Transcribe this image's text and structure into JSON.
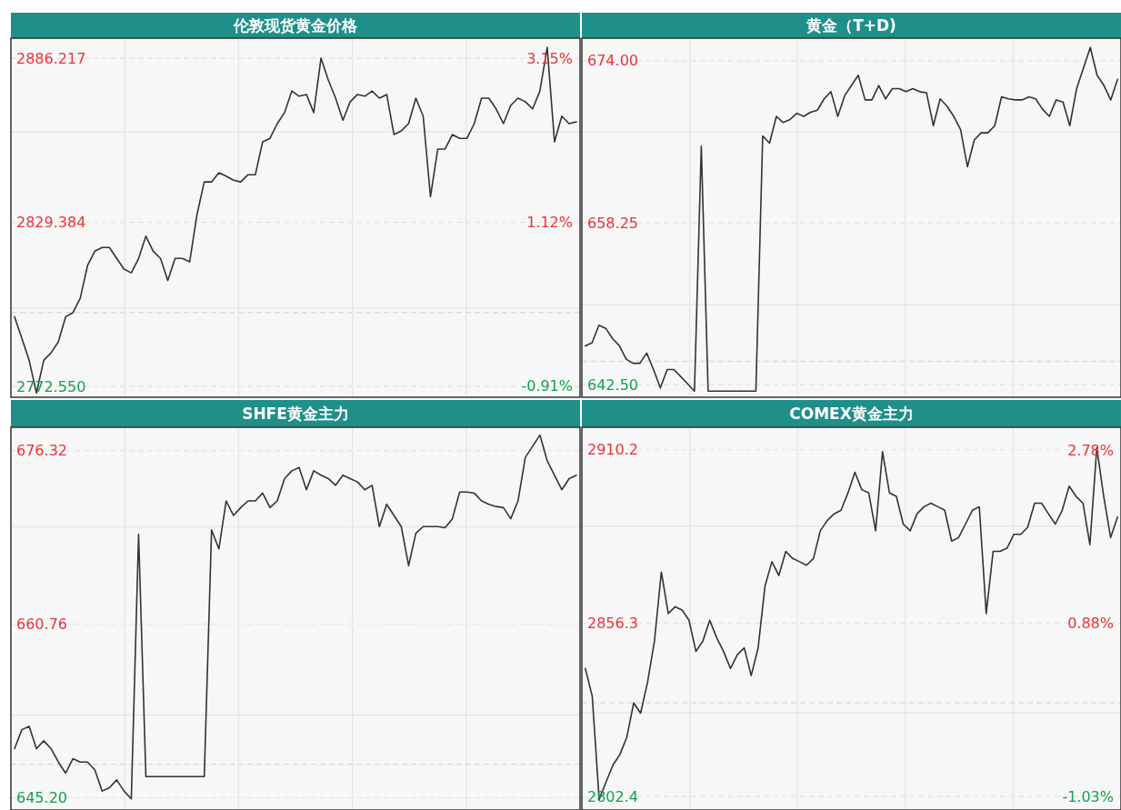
{
  "chart_data": [
    {
      "type": "line",
      "title": "伦敦现货黄金价格",
      "grid": true,
      "categories": [
        null,
        null,
        null,
        null,
        null,
        null,
        null,
        null,
        null,
        null,
        null,
        null,
        null,
        null,
        null,
        null,
        null,
        null,
        null,
        null,
        null,
        null,
        null,
        null,
        null,
        null,
        null,
        null,
        null,
        null,
        null,
        null,
        null,
        null,
        null,
        null,
        null,
        null,
        null,
        null,
        null,
        null,
        null,
        null,
        null,
        null,
        null,
        null,
        null,
        null,
        null,
        null,
        null,
        null,
        null,
        null,
        null,
        null,
        null,
        null,
        null,
        null,
        null,
        null,
        null,
        null,
        null,
        null,
        null,
        null,
        null,
        null,
        null,
        null,
        null,
        null,
        null,
        null
      ],
      "series": [
        {
          "color": "#333333",
          "values": [
            2796.7,
            2789.2,
            2781.6,
            2770.3,
            2781.6,
            2784.2,
            2788.0,
            2796.7,
            2798.1,
            2803.1,
            2814.4,
            2819.4,
            2820.7,
            2820.7,
            2816.9,
            2813.2,
            2811.9,
            2816.9,
            2824.6,
            2819.4,
            2816.9,
            2809.3,
            2816.9,
            2816.9,
            2815.7,
            2832.1,
            2843.4,
            2843.4,
            2846.6,
            2845.4,
            2844.0,
            2843.4,
            2845.9,
            2845.9,
            2857.3,
            2858.5,
            2863.6,
            2867.4,
            2874.9,
            2873.1,
            2873.7,
            2867.4,
            2886.3,
            2878.7,
            2872.4,
            2864.8,
            2871.2,
            2873.7,
            2873.1,
            2874.9,
            2872.4,
            2873.7,
            2859.8,
            2861.1,
            2863.6,
            2872.4,
            2866.2,
            2838.3,
            2854.8,
            2854.8,
            2859.8,
            2858.5,
            2858.5,
            2863.6,
            2872.4,
            2872.4,
            2868.7,
            2863.6,
            2869.9,
            2872.4,
            2871.2,
            2868.7,
            2874.9,
            2890.0,
            2857.3,
            2866.2,
            2863.6,
            2864.2
          ]
        }
      ],
      "ylim": [
        2768.8,
        2893.2
      ],
      "yticks": [
        {
          "value": 2772.55,
          "label": "2772.550"
        },
        {
          "value": 2799.6,
          "label": null
        },
        {
          "value": 2829.384,
          "label": "2829.384"
        },
        {
          "value": 2860.8,
          "label": null
        },
        {
          "value": 2886.217,
          "label": "2886.217"
        }
      ],
      "y2lim": [
        -1.05,
        3.4
      ],
      "y2ticks": [
        {
          "value": -0.91,
          "label": "-0.91%"
        },
        {
          "value": 1.12,
          "label": "1.12%"
        },
        {
          "value": 3.15,
          "label": "3.15%"
        }
      ],
      "ref_lines": [
        {
          "axis": "y2",
          "value": 0,
          "color": "#dddddd",
          "line_style": "dashed"
        }
      ]
    },
    {
      "type": "line",
      "title": "黄金（T+D)",
      "grid": true,
      "categories": [
        null,
        null,
        null,
        null,
        null,
        null,
        null,
        null,
        null,
        null,
        null,
        null,
        null,
        null,
        null,
        null,
        null,
        null,
        null,
        null,
        null,
        null,
        null,
        null,
        null,
        null,
        null,
        null,
        null,
        null,
        null,
        null,
        null,
        null,
        null,
        null,
        null,
        null,
        null,
        null,
        null,
        null,
        null,
        null,
        null,
        null,
        null,
        null,
        null,
        null,
        null,
        null,
        null,
        null,
        null,
        null,
        null,
        null,
        null,
        null,
        null,
        null,
        null,
        null,
        null,
        null,
        null,
        null,
        null,
        null,
        null,
        null,
        null,
        null,
        null,
        null,
        null,
        null,
        null
      ],
      "series": [
        {
          "color": "#333333",
          "values": [
            646.3,
            646.6,
            648.3,
            648.0,
            647.0,
            646.3,
            645.0,
            644.6,
            644.6,
            645.6,
            644.0,
            642.2,
            644.0,
            644.0,
            643.3,
            642.6,
            641.9,
            665.7,
            641.9,
            641.9,
            641.9,
            641.9,
            641.9,
            641.9,
            641.9,
            641.9,
            666.7,
            666.0,
            668.6,
            668.0,
            668.3,
            668.9,
            668.6,
            669.0,
            669.2,
            670.3,
            671.0,
            668.6,
            670.6,
            671.6,
            672.6,
            670.2,
            670.2,
            671.6,
            670.3,
            671.3,
            671.3,
            671.0,
            671.3,
            671.0,
            670.9,
            667.7,
            670.3,
            669.6,
            668.6,
            667.3,
            663.7,
            666.3,
            667.0,
            667.0,
            667.7,
            670.5,
            670.3,
            670.2,
            670.2,
            670.5,
            670.3,
            669.3,
            668.6,
            670.2,
            670.0,
            667.7,
            671.3,
            673.3,
            675.3,
            672.6,
            671.6,
            670.2,
            672.2
          ]
        }
      ],
      "ylim": [
        641.3,
        676.2
      ],
      "yticks": [
        {
          "value": 642.5,
          "label": "642.50"
        },
        {
          "value": 650.3,
          "label": null
        },
        {
          "value": 658.25,
          "label": "658.25"
        },
        {
          "value": 667.1,
          "label": null
        },
        {
          "value": 674.0,
          "label": "674.00"
        }
      ],
      "ref_lines": [
        {
          "axis": "y",
          "value": 644.8,
          "color": "#dddddd",
          "line_style": "dashed"
        }
      ]
    },
    {
      "type": "line",
      "title": "SHFE黄金主力",
      "grid": true,
      "categories": [
        null,
        null,
        null,
        null,
        null,
        null,
        null,
        null,
        null,
        null,
        null,
        null,
        null,
        null,
        null,
        null,
        null,
        null,
        null,
        null,
        null,
        null,
        null,
        null,
        null,
        null,
        null,
        null,
        null,
        null,
        null,
        null,
        null,
        null,
        null,
        null,
        null,
        null,
        null,
        null,
        null,
        null,
        null,
        null,
        null,
        null,
        null,
        null,
        null,
        null,
        null,
        null,
        null,
        null,
        null,
        null,
        null,
        null,
        null,
        null,
        null,
        null,
        null,
        null,
        null,
        null,
        null,
        null,
        null,
        null,
        null,
        null,
        null,
        null,
        null,
        null,
        null,
        null
      ],
      "series": [
        {
          "color": "#333333",
          "values": [
            649.6,
            651.3,
            651.6,
            649.6,
            650.3,
            649.6,
            648.4,
            647.4,
            648.7,
            648.4,
            648.4,
            647.7,
            645.8,
            646.1,
            646.8,
            645.8,
            645.1,
            668.8,
            647.1,
            647.1,
            647.1,
            647.1,
            647.1,
            647.1,
            647.1,
            647.1,
            647.1,
            669.2,
            667.5,
            671.8,
            670.5,
            671.2,
            671.8,
            671.8,
            672.5,
            671.2,
            671.8,
            673.8,
            674.5,
            674.8,
            672.8,
            674.5,
            674.1,
            673.8,
            673.2,
            674.1,
            673.8,
            673.5,
            672.8,
            673.2,
            669.5,
            671.5,
            670.5,
            669.5,
            666.0,
            668.9,
            669.5,
            669.5,
            669.5,
            669.4,
            670.2,
            672.6,
            672.6,
            672.5,
            671.8,
            671.5,
            671.3,
            671.2,
            670.2,
            671.8,
            675.7,
            676.7,
            677.7,
            675.4,
            674.1,
            672.8,
            673.8,
            674.1
          ]
        }
      ],
      "ylim": [
        644.1,
        678.4
      ],
      "yticks": [
        {
          "value": 645.2,
          "label": "645.20"
        },
        {
          "value": 652.6,
          "label": null
        },
        {
          "value": 660.76,
          "label": "660.76"
        },
        {
          "value": 669.5,
          "label": null
        },
        {
          "value": 676.32,
          "label": "676.32"
        }
      ],
      "ref_lines": [
        {
          "axis": "y",
          "value": 648.2,
          "color": "#dddddd",
          "line_style": "dashed"
        }
      ]
    },
    {
      "type": "line",
      "title": "COMEX黄金主力",
      "grid": true,
      "categories": [
        null,
        null,
        null,
        null,
        null,
        null,
        null,
        null,
        null,
        null,
        null,
        null,
        null,
        null,
        null,
        null,
        null,
        null,
        null,
        null,
        null,
        null,
        null,
        null,
        null,
        null,
        null,
        null,
        null,
        null,
        null,
        null,
        null,
        null,
        null,
        null,
        null,
        null,
        null,
        null,
        null,
        null,
        null,
        null,
        null,
        null,
        null,
        null,
        null,
        null,
        null,
        null,
        null,
        null,
        null,
        null,
        null,
        null,
        null,
        null,
        null,
        null,
        null,
        null,
        null,
        null,
        null,
        null,
        null,
        null,
        null,
        null,
        null,
        null,
        null,
        null,
        null,
        null
      ],
      "series": [
        {
          "color": "#333333",
          "values": [
            2842.2,
            2833.6,
            2801.5,
            2806.9,
            2812.2,
            2815.4,
            2820.8,
            2831.5,
            2828.3,
            2837.9,
            2850.7,
            2872.2,
            2859.3,
            2861.4,
            2860.4,
            2857.2,
            2847.5,
            2850.7,
            2857.2,
            2851.8,
            2847.5,
            2842.2,
            2846.5,
            2848.6,
            2840.0,
            2848.6,
            2867.9,
            2875.4,
            2871.1,
            2878.6,
            2876.4,
            2875.4,
            2874.3,
            2876.4,
            2885.0,
            2888.2,
            2890.3,
            2891.4,
            2896.8,
            2903.2,
            2897.8,
            2896.8,
            2885.0,
            2909.6,
            2896.8,
            2895.7,
            2887.1,
            2885.0,
            2890.3,
            2892.5,
            2893.6,
            2892.5,
            2891.4,
            2881.8,
            2882.9,
            2887.1,
            2891.4,
            2892.5,
            2859.3,
            2878.6,
            2878.6,
            2879.6,
            2883.9,
            2883.9,
            2886.1,
            2893.6,
            2893.6,
            2890.3,
            2887.1,
            2891.4,
            2898.9,
            2895.7,
            2893.6,
            2880.7,
            2910.8,
            2895.7,
            2882.9,
            2889.3
          ]
        }
      ],
      "ylim": [
        2798.2,
        2917.2
      ],
      "yticks": [
        {
          "value": 2802.4,
          "label": "2802.4"
        },
        {
          "value": 2828.5,
          "label": null
        },
        {
          "value": 2856.3,
          "label": "2856.3"
        },
        {
          "value": 2886.4,
          "label": null
        },
        {
          "value": 2910.2,
          "label": "2910.2"
        }
      ],
      "y2lim": [
        -1.18,
        3.03
      ],
      "y2ticks": [
        {
          "value": -1.03,
          "label": "-1.03%"
        },
        {
          "value": 0.88,
          "label": "0.88%"
        },
        {
          "value": 2.78,
          "label": "2.78%"
        }
      ],
      "ref_lines": [
        {
          "axis": "y2",
          "value": 0,
          "color": "#dddddd",
          "line_style": "dashed"
        }
      ]
    }
  ]
}
